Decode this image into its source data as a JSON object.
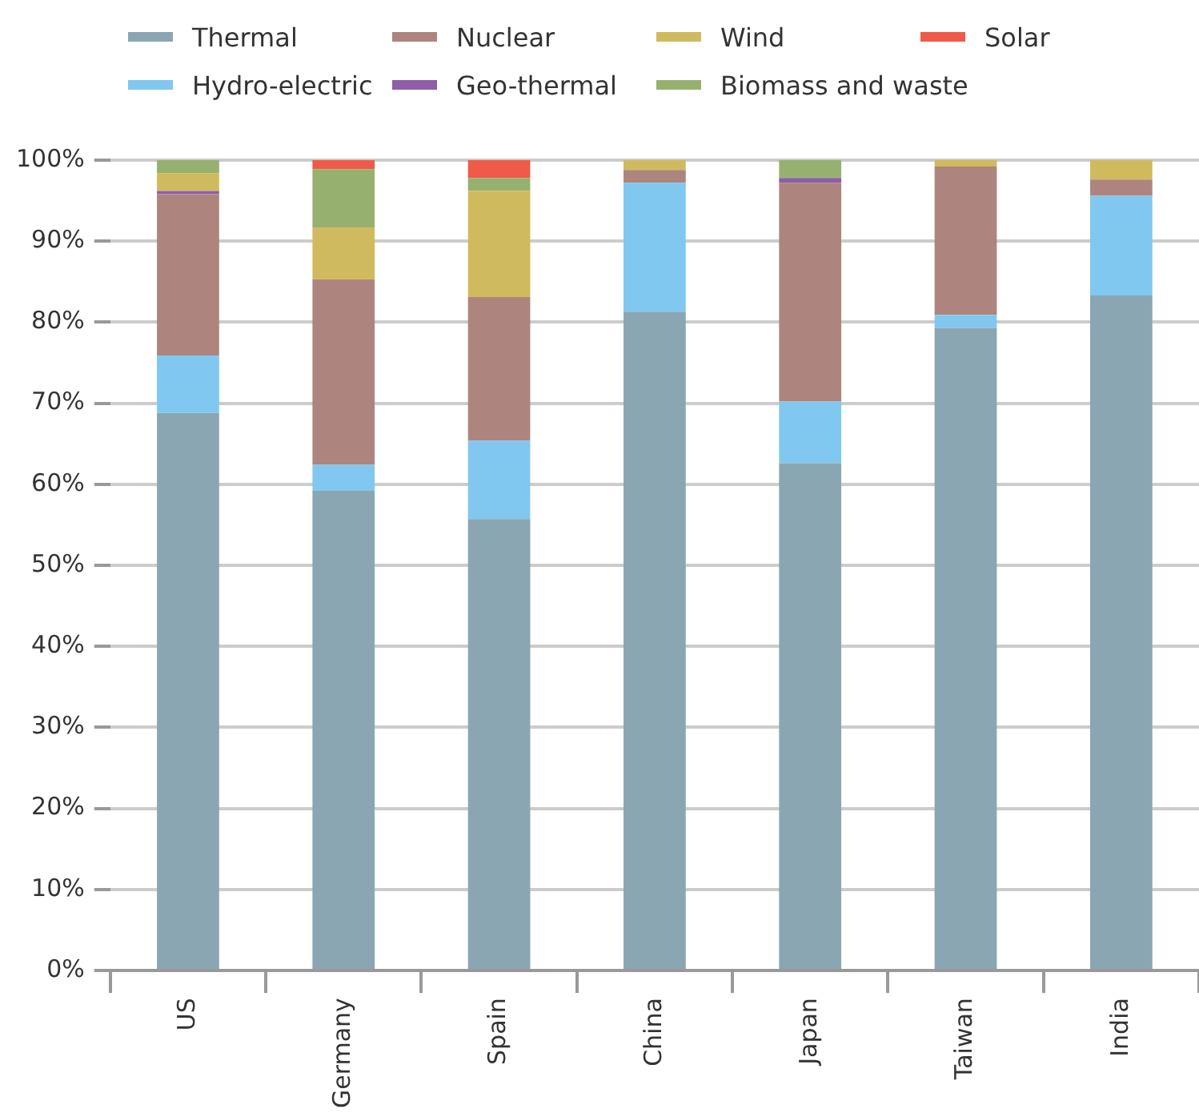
{
  "chart_data": {
    "type": "bar",
    "stacked": true,
    "legend": "top",
    "grid": "y",
    "categories": [
      "US",
      "Germany",
      "Spain",
      "China",
      "Japan",
      "Taiwan",
      "India"
    ],
    "ylim": [
      0,
      100
    ],
    "yticks": [
      {
        "value": 0,
        "label": "0%"
      },
      {
        "value": 10,
        "label": "10%"
      },
      {
        "value": 20,
        "label": "20%"
      },
      {
        "value": 30,
        "label": "30%"
      },
      {
        "value": 40,
        "label": "40%"
      },
      {
        "value": 50,
        "label": "50%"
      },
      {
        "value": 60,
        "label": "60%"
      },
      {
        "value": 70,
        "label": "70%"
      },
      {
        "value": 80,
        "label": "80%"
      },
      {
        "value": 90,
        "label": "90%"
      },
      {
        "value": 100,
        "label": "100%"
      }
    ],
    "series": [
      {
        "name": "Thermal",
        "color": "#8aa6b2",
        "values": [
          68.8,
          59.2,
          55.7,
          81.3,
          62.6,
          79.3,
          83.3
        ]
      },
      {
        "name": "Hydro-electric",
        "color": "#80c8ef",
        "values": [
          7.1,
          3.2,
          9.7,
          15.9,
          7.6,
          1.6,
          12.3
        ]
      },
      {
        "name": "Nuclear",
        "color": "#ad857e",
        "values": [
          19.9,
          22.9,
          17.7,
          1.6,
          27.0,
          18.3,
          2.0
        ]
      },
      {
        "name": "Geo-thermal",
        "color": "#8e5ea8",
        "values": [
          0.4,
          0,
          0,
          0,
          0.6,
          0,
          0
        ]
      },
      {
        "name": "Wind",
        "color": "#d0ba5e",
        "values": [
          2.2,
          6.4,
          13.1,
          1.2,
          0,
          0.8,
          2.4
        ]
      },
      {
        "name": "Biomass and waste",
        "color": "#96b16f",
        "values": [
          1.6,
          7.2,
          1.6,
          0,
          2.2,
          0,
          0
        ]
      },
      {
        "name": "Solar",
        "color": "#f05a48",
        "values": [
          0,
          1.1,
          2.2,
          0,
          0,
          0,
          0
        ]
      }
    ]
  }
}
